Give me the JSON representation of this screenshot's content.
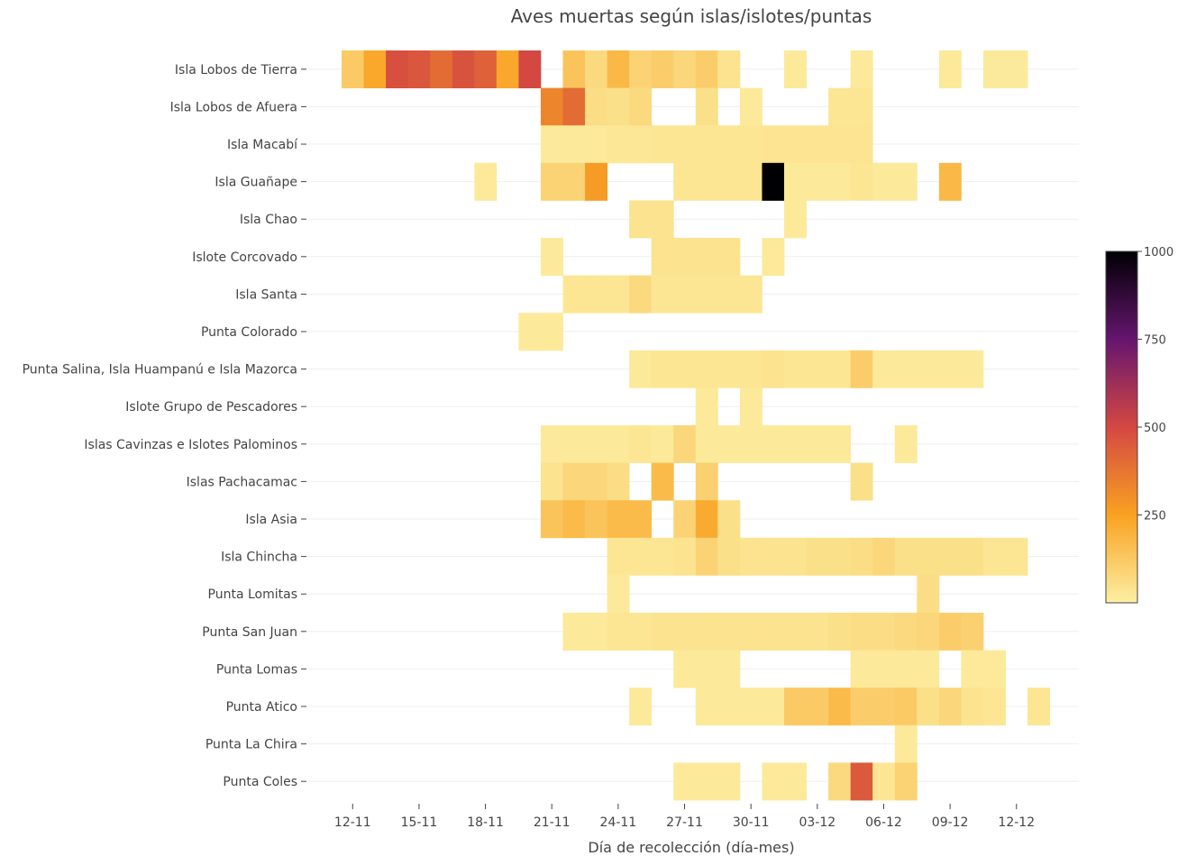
{
  "chart_data": {
    "type": "heatmap",
    "title": "Aves muertas según islas/islotes/puntas",
    "xlabel": "Día de recolección (día-mes)",
    "ylabel": "",
    "x_ticks": [
      "12-11",
      "15-11",
      "18-11",
      "21-11",
      "24-11",
      "27-11",
      "30-11",
      "03-12",
      "06-12",
      "09-12",
      "12-12"
    ],
    "x_dates": [
      "11-12",
      "11-13",
      "11-14",
      "11-15",
      "11-16",
      "11-17",
      "11-18",
      "11-19",
      "11-20",
      "11-21",
      "11-22",
      "11-23",
      "11-24",
      "11-25",
      "11-26",
      "11-27",
      "11-28",
      "11-29",
      "11-30",
      "12-01",
      "12-02",
      "12-03",
      "12-04",
      "12-05",
      "12-06",
      "12-07",
      "12-08",
      "12-09",
      "12-10",
      "12-11",
      "12-12",
      "12-13"
    ],
    "colorscale": {
      "range": [
        0,
        1000
      ],
      "ticks": [
        "250",
        "500",
        "750",
        "1000"
      ],
      "stops": [
        [
          "0",
          "#fcefa4"
        ],
        [
          "0.25",
          "#f9a221"
        ],
        [
          "0.5",
          "#d44842"
        ],
        [
          "0.75",
          "#65156e"
        ],
        [
          "1",
          "#000004"
        ]
      ]
    },
    "rows": [
      {
        "name": "Isla Lobos de Tierra",
        "cells": [
          [
            0,
            120
          ],
          [
            1,
            230
          ],
          [
            2,
            480
          ],
          [
            3,
            460
          ],
          [
            4,
            400
          ],
          [
            5,
            470
          ],
          [
            6,
            430
          ],
          [
            7,
            230
          ],
          [
            8,
            500
          ],
          [
            10,
            140
          ],
          [
            11,
            70
          ],
          [
            12,
            180
          ],
          [
            13,
            90
          ],
          [
            14,
            110
          ],
          [
            15,
            80
          ],
          [
            16,
            110
          ],
          [
            17,
            40
          ],
          [
            20,
            20
          ],
          [
            23,
            20
          ],
          [
            27,
            20
          ],
          [
            29,
            15
          ],
          [
            30,
            15
          ]
        ]
      },
      {
        "name": "Isla Lobos de Afuera",
        "cells": [
          [
            9,
            330
          ],
          [
            10,
            400
          ],
          [
            11,
            60
          ],
          [
            12,
            50
          ],
          [
            13,
            70
          ],
          [
            16,
            50
          ],
          [
            18,
            20
          ],
          [
            22,
            30
          ],
          [
            23,
            30
          ]
        ]
      },
      {
        "name": "Isla Macabí",
        "cells": [
          [
            9,
            20
          ],
          [
            10,
            20
          ],
          [
            11,
            20
          ],
          [
            12,
            25
          ],
          [
            13,
            25
          ],
          [
            14,
            30
          ],
          [
            15,
            30
          ],
          [
            16,
            30
          ],
          [
            17,
            30
          ],
          [
            18,
            30
          ],
          [
            19,
            35
          ],
          [
            20,
            35
          ],
          [
            21,
            35
          ],
          [
            22,
            35
          ],
          [
            23,
            35
          ]
        ]
      },
      {
        "name": "Isla Guañape",
        "cells": [
          [
            6,
            20
          ],
          [
            9,
            90
          ],
          [
            10,
            90
          ],
          [
            11,
            270
          ],
          [
            15,
            30
          ],
          [
            16,
            30
          ],
          [
            17,
            30
          ],
          [
            18,
            30
          ],
          [
            19,
            1000
          ],
          [
            20,
            20
          ],
          [
            21,
            20
          ],
          [
            22,
            20
          ],
          [
            23,
            30
          ],
          [
            24,
            20
          ],
          [
            25,
            20
          ],
          [
            27,
            180
          ]
        ]
      },
      {
        "name": "Isla Chao",
        "cells": [
          [
            13,
            40
          ],
          [
            14,
            40
          ],
          [
            20,
            20
          ]
        ]
      },
      {
        "name": "Islote Corcovado",
        "cells": [
          [
            9,
            20
          ],
          [
            14,
            40
          ],
          [
            15,
            40
          ],
          [
            16,
            40
          ],
          [
            17,
            40
          ],
          [
            19,
            20
          ]
        ]
      },
      {
        "name": "Isla Santa",
        "cells": [
          [
            10,
            30
          ],
          [
            11,
            30
          ],
          [
            12,
            30
          ],
          [
            13,
            70
          ],
          [
            14,
            30
          ],
          [
            15,
            30
          ],
          [
            16,
            30
          ],
          [
            17,
            30
          ],
          [
            18,
            30
          ]
        ]
      },
      {
        "name": "Punta Colorado",
        "cells": [
          [
            8,
            20
          ],
          [
            9,
            20
          ]
        ]
      },
      {
        "name": "Punta Salina, Isla Huampanú e Isla Mazorca",
        "cells": [
          [
            13,
            20
          ],
          [
            14,
            30
          ],
          [
            15,
            30
          ],
          [
            16,
            30
          ],
          [
            17,
            30
          ],
          [
            18,
            30
          ],
          [
            19,
            40
          ],
          [
            20,
            30
          ],
          [
            21,
            30
          ],
          [
            22,
            30
          ],
          [
            23,
            110
          ],
          [
            24,
            20
          ],
          [
            25,
            20
          ],
          [
            26,
            20
          ],
          [
            27,
            20
          ],
          [
            28,
            20
          ]
        ]
      },
      {
        "name": "Islote Grupo de Pescadores",
        "cells": [
          [
            16,
            20
          ],
          [
            18,
            20
          ]
        ]
      },
      {
        "name": "Islas Cavinzas e Islotes Palominos",
        "cells": [
          [
            9,
            20
          ],
          [
            10,
            20
          ],
          [
            11,
            20
          ],
          [
            12,
            20
          ],
          [
            13,
            30
          ],
          [
            14,
            20
          ],
          [
            15,
            80
          ],
          [
            16,
            20
          ],
          [
            17,
            20
          ],
          [
            18,
            20
          ],
          [
            19,
            20
          ],
          [
            20,
            20
          ],
          [
            21,
            20
          ],
          [
            22,
            20
          ],
          [
            25,
            20
          ]
        ]
      },
      {
        "name": "Islas Pachacamac",
        "cells": [
          [
            9,
            40
          ],
          [
            10,
            80
          ],
          [
            11,
            80
          ],
          [
            12,
            60
          ],
          [
            14,
            170
          ],
          [
            16,
            100
          ],
          [
            23,
            50
          ]
        ]
      },
      {
        "name": "Isla Asia",
        "cells": [
          [
            9,
            140
          ],
          [
            10,
            170
          ],
          [
            11,
            140
          ],
          [
            12,
            170
          ],
          [
            13,
            170
          ],
          [
            15,
            90
          ],
          [
            16,
            220
          ],
          [
            17,
            50
          ]
        ]
      },
      {
        "name": "Isla Chincha",
        "cells": [
          [
            12,
            30
          ],
          [
            13,
            30
          ],
          [
            14,
            30
          ],
          [
            15,
            40
          ],
          [
            16,
            90
          ],
          [
            17,
            50
          ],
          [
            18,
            40
          ],
          [
            19,
            40
          ],
          [
            20,
            40
          ],
          [
            21,
            50
          ],
          [
            22,
            50
          ],
          [
            23,
            60
          ],
          [
            24,
            80
          ],
          [
            25,
            50
          ],
          [
            26,
            50
          ],
          [
            27,
            50
          ],
          [
            28,
            50
          ],
          [
            29,
            30
          ],
          [
            30,
            30
          ]
        ]
      },
      {
        "name": "Punta Lomitas",
        "cells": [
          [
            12,
            20
          ],
          [
            26,
            60
          ]
        ]
      },
      {
        "name": "Punta San Juan",
        "cells": [
          [
            10,
            20
          ],
          [
            11,
            20
          ],
          [
            12,
            30
          ],
          [
            13,
            30
          ],
          [
            14,
            40
          ],
          [
            15,
            40
          ],
          [
            16,
            40
          ],
          [
            17,
            40
          ],
          [
            18,
            40
          ],
          [
            19,
            40
          ],
          [
            20,
            40
          ],
          [
            21,
            40
          ],
          [
            22,
            50
          ],
          [
            23,
            60
          ],
          [
            24,
            60
          ],
          [
            25,
            70
          ],
          [
            26,
            80
          ],
          [
            27,
            110
          ],
          [
            28,
            100
          ]
        ]
      },
      {
        "name": "Punta Lomas",
        "cells": [
          [
            15,
            20
          ],
          [
            16,
            20
          ],
          [
            17,
            20
          ],
          [
            23,
            20
          ],
          [
            24,
            20
          ],
          [
            25,
            20
          ],
          [
            26,
            20
          ],
          [
            28,
            20
          ],
          [
            29,
            20
          ]
        ]
      },
      {
        "name": "Punta Atico",
        "cells": [
          [
            13,
            20
          ],
          [
            16,
            20
          ],
          [
            17,
            20
          ],
          [
            18,
            20
          ],
          [
            19,
            20
          ],
          [
            20,
            120
          ],
          [
            21,
            120
          ],
          [
            22,
            170
          ],
          [
            23,
            110
          ],
          [
            24,
            110
          ],
          [
            25,
            120
          ],
          [
            26,
            50
          ],
          [
            27,
            80
          ],
          [
            28,
            40
          ],
          [
            29,
            30
          ],
          [
            31,
            30
          ]
        ]
      },
      {
        "name": "Punta La Chira",
        "cells": [
          [
            25,
            20
          ]
        ]
      },
      {
        "name": "Punta Coles",
        "cells": [
          [
            15,
            20
          ],
          [
            16,
            20
          ],
          [
            17,
            20
          ],
          [
            19,
            20
          ],
          [
            20,
            20
          ],
          [
            22,
            70
          ],
          [
            23,
            450
          ],
          [
            24,
            30
          ],
          [
            25,
            90
          ]
        ]
      }
    ]
  }
}
